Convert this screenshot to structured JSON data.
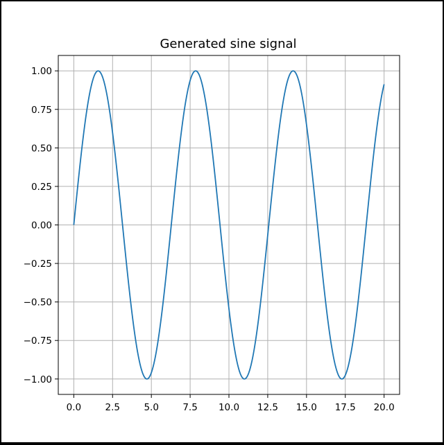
{
  "chart_data": {
    "type": "line",
    "title": "Generated sine signal",
    "xlabel": "",
    "ylabel": "",
    "xlim": [
      -1.0,
      21.0
    ],
    "ylim": [
      -1.1,
      1.1
    ],
    "grid": true,
    "x_ticks": [
      0.0,
      2.5,
      5.0,
      7.5,
      10.0,
      12.5,
      15.0,
      17.5,
      20.0
    ],
    "x_tick_labels": [
      "0.0",
      "2.5",
      "5.0",
      "7.5",
      "10.0",
      "12.5",
      "15.0",
      "17.5",
      "20.0"
    ],
    "y_ticks": [
      1.0,
      0.75,
      0.5,
      0.25,
      0.0,
      -0.25,
      -0.5,
      -0.75,
      -1.0
    ],
    "y_tick_labels": [
      "1.00",
      "0.75",
      "0.50",
      "0.25",
      "0.00",
      "−0.25",
      "−0.50",
      "−0.75",
      "−1.00"
    ],
    "series": [
      {
        "function": "sin(x)",
        "x_range": [
          0.0,
          20.0
        ],
        "points": 400,
        "color": "#1f77b4"
      }
    ]
  }
}
